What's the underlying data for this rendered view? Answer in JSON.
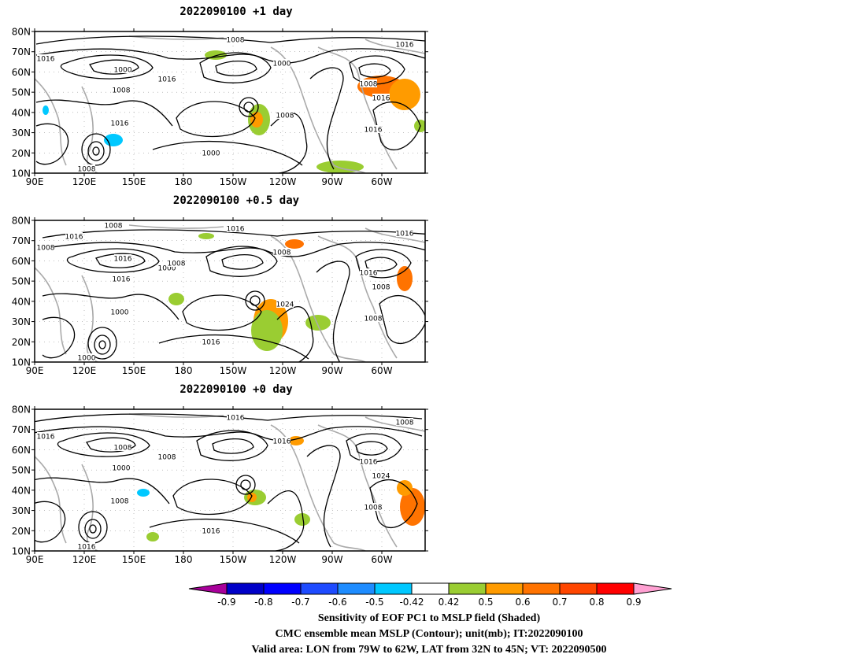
{
  "panels": [
    {
      "title": "2022090100  +1 day",
      "lat_labels": [
        "80N",
        "70N",
        "60N",
        "50N",
        "40N",
        "30N",
        "20N",
        "10N"
      ],
      "lon_labels": [
        "90E",
        "120E",
        "150E",
        "180",
        "150W",
        "120W",
        "90W",
        "60W"
      ],
      "contour_labels": [
        "1008",
        "1016",
        "1000",
        "1016",
        "1008",
        "1016",
        "1000",
        "1008",
        "1016",
        "1000",
        "1008",
        "1016",
        "1016",
        "1008"
      ]
    },
    {
      "title": "2022090100  +0.5 day",
      "lat_labels": [
        "80N",
        "70N",
        "60N",
        "50N",
        "40N",
        "30N",
        "20N",
        "10N"
      ],
      "lon_labels": [
        "90E",
        "120E",
        "150E",
        "180",
        "150W",
        "120W",
        "90W",
        "60W"
      ],
      "contour_labels": [
        "1016",
        "1008",
        "1016",
        "1000",
        "1016",
        "1000",
        "1008",
        "1016",
        "1008",
        "1016",
        "1000",
        "1008",
        "1016",
        "1024",
        "1008",
        "1016",
        "1008"
      ]
    },
    {
      "title": "2022090100  +0 day",
      "lat_labels": [
        "80N",
        "70N",
        "60N",
        "50N",
        "40N",
        "30N",
        "20N",
        "10N"
      ],
      "lon_labels": [
        "90E",
        "120E",
        "150E",
        "180",
        "150W",
        "120W",
        "90W",
        "60W"
      ],
      "contour_labels": [
        "1016",
        "1016",
        "1008",
        "1008",
        "1000",
        "1008",
        "1016",
        "1016",
        "1024",
        "1016",
        "1016",
        "1008",
        "1008"
      ]
    }
  ],
  "colorbar": {
    "labels": [
      "-0.9",
      "-0.8",
      "-0.7",
      "-0.6",
      "-0.5",
      "-0.42",
      "0.42",
      "0.5",
      "0.6",
      "0.7",
      "0.8",
      "0.9"
    ],
    "colors": [
      "#a8009a",
      "#0000c8",
      "#0000ff",
      "#1e4bff",
      "#1e8cff",
      "#00c8ff",
      "#ffffff",
      "#9acd32",
      "#ff9b00",
      "#ff7300",
      "#ff4600",
      "#ff0000",
      "#ffa0d2"
    ]
  },
  "footer": {
    "line1": "Sensitivity of EOF PC1 to MSLP field (Shaded)",
    "line2": "CMC ensemble mean MSLP (Contour); unit(mb); IT:2022090100",
    "line3": "Valid area: LON from 79W to 62W, LAT from 32N to 45N; VT: 2022090500"
  }
}
